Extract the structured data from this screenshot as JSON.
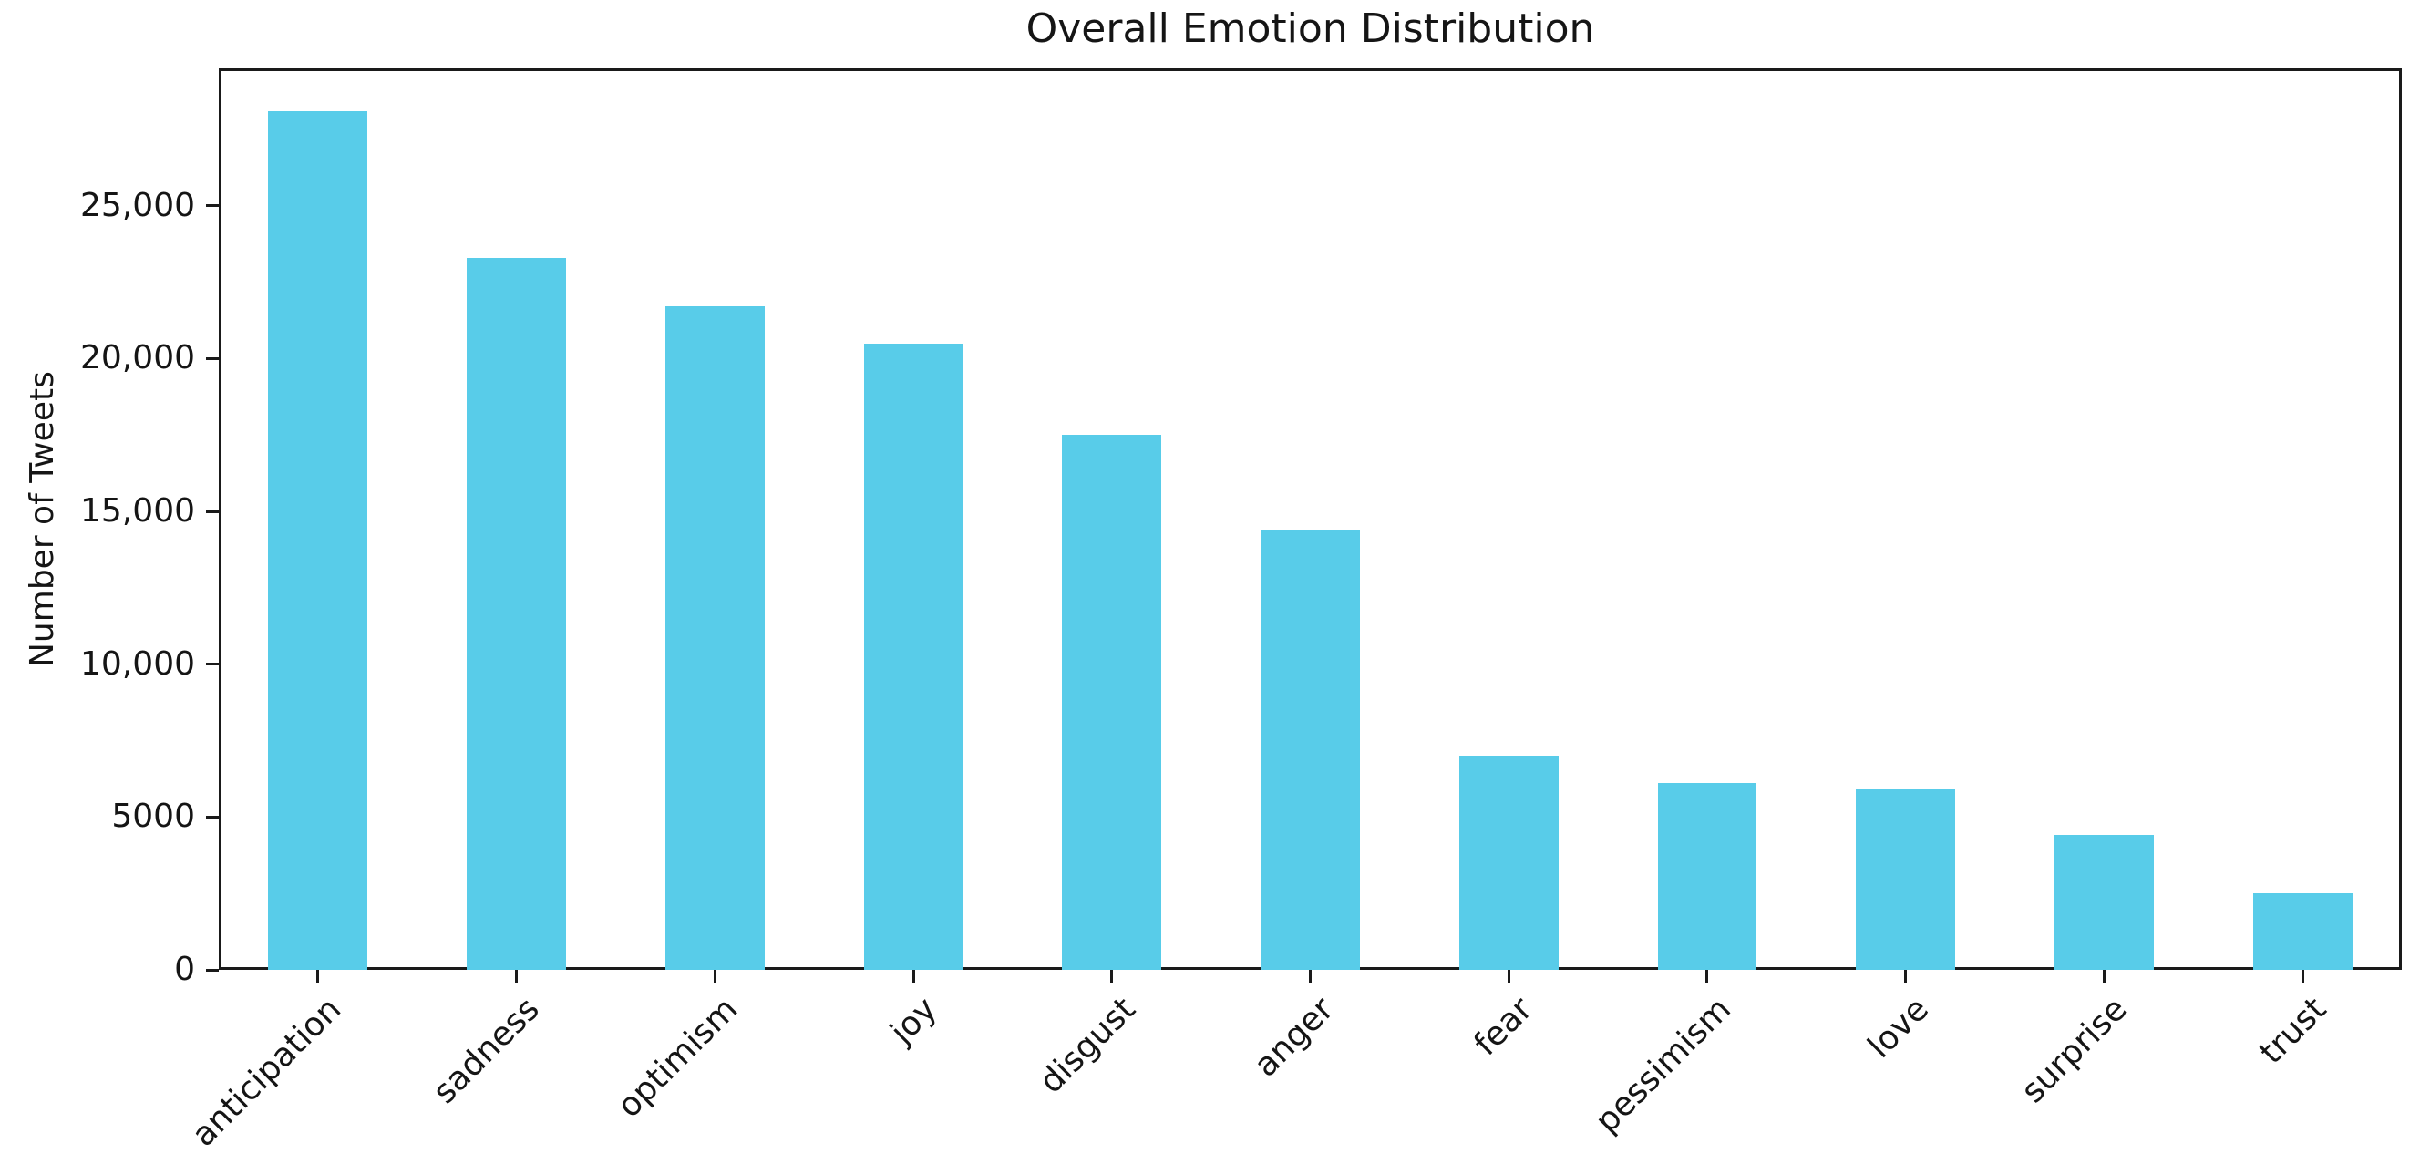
{
  "chart_data": {
    "type": "bar",
    "title": "Overall Emotion Distribution",
    "ylabel": "Number of Tweets",
    "categories": [
      "anticipation",
      "sadness",
      "optimism",
      "joy",
      "disgust",
      "anger",
      "fear",
      "pessimism",
      "love",
      "surprise",
      "trust"
    ],
    "values": [
      28100,
      23300,
      21700,
      20500,
      17500,
      14400,
      7000,
      6100,
      5900,
      4400,
      2500
    ],
    "yticks": [
      {
        "value": 0,
        "label": "0"
      },
      {
        "value": 5000,
        "label": "5000"
      },
      {
        "value": 10000,
        "label": "10,000"
      },
      {
        "value": 15000,
        "label": "15,000"
      },
      {
        "value": 20000,
        "label": "20,000"
      },
      {
        "value": 25000,
        "label": "25,000"
      }
    ],
    "ylim": [
      0,
      29500
    ],
    "bar_color": "#58CCE9",
    "bar_width_frac": 0.5,
    "xtick_rotation_deg": 45,
    "grid": false,
    "axis_color": "#1a1a1a",
    "text_color": "#151515",
    "background_color": "#ffffff"
  }
}
